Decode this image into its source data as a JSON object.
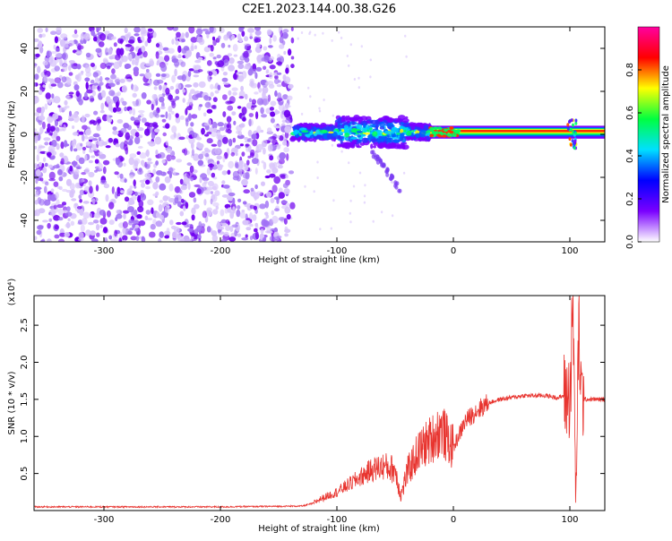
{
  "page_title": "C2E1.2023.144.00.38.G26",
  "chart_data": [
    {
      "type": "heatmap",
      "title": "C2E1.2023.144.00.38.G26",
      "xlabel": "Height of straight line (km)",
      "ylabel": "Frequency (Hz)",
      "xlim": [
        -360,
        130
      ],
      "ylim": [
        -50,
        50
      ],
      "xticks": [
        -300,
        -200,
        -100,
        0,
        100
      ],
      "yticks": [
        -40,
        -20,
        0,
        20,
        40
      ],
      "colorbar": {
        "label": "Normalized spectral amplitude",
        "range": [
          0,
          1
        ],
        "ticks": [
          "0.0",
          "0.2",
          "0.4",
          "0.6",
          "0.8"
        ],
        "stops": [
          "#ffffff",
          "#7a00ff",
          "#0000ff",
          "#00e0ff",
          "#00ff40",
          "#ffff00",
          "#ff0000",
          "#ff00a0"
        ]
      },
      "regions": [
        {
          "x_range": [
            -360,
            -138
          ],
          "freq_range": [
            -50,
            50
          ],
          "pattern": "broadband scattered noise, purple"
        },
        {
          "x_range": [
            -138,
            -20
          ],
          "freq_range": [
            -8,
            8
          ],
          "pattern": "fragmented signal band around 0 Hz"
        },
        {
          "x_range": [
            -20,
            130
          ],
          "freq_range": [
            -2,
            4
          ],
          "pattern": "narrow steady carrier line near 2 Hz"
        }
      ],
      "grid": false
    },
    {
      "type": "line",
      "title": "",
      "xlabel": "Height of straight line (km)",
      "ylabel": "SNR (10 * v/v)",
      "y_scale_label": "(x10⁴)",
      "xlim": [
        -360,
        130
      ],
      "ylim": [
        0,
        2.9
      ],
      "xticks": [
        -300,
        -200,
        -100,
        0,
        100
      ],
      "yticks": [
        "0.5",
        "1.0",
        "1.5",
        "2.0",
        "2.5"
      ],
      "line_color": "#e8342f",
      "series": [
        {
          "name": "",
          "x": [
            -360,
            -300,
            -200,
            -130,
            -120,
            -115,
            -100,
            -90,
            -80,
            -70,
            -60,
            -50,
            -45,
            -40,
            -30,
            -20,
            -10,
            -5,
            0,
            10,
            20,
            30,
            40,
            60,
            80,
            90,
            95,
            100,
            103,
            105,
            108,
            110,
            120,
            130
          ],
          "y": [
            0.05,
            0.05,
            0.05,
            0.06,
            0.1,
            0.15,
            0.25,
            0.35,
            0.45,
            0.55,
            0.6,
            0.55,
            0.2,
            0.5,
            0.8,
            0.95,
            1.1,
            0.95,
            0.85,
            1.2,
            1.35,
            1.45,
            1.5,
            1.55,
            1.55,
            1.52,
            1.55,
            1.55,
            2.7,
            0.05,
            2.5,
            1.5,
            1.5,
            1.5
          ]
        }
      ],
      "grid": false
    }
  ]
}
